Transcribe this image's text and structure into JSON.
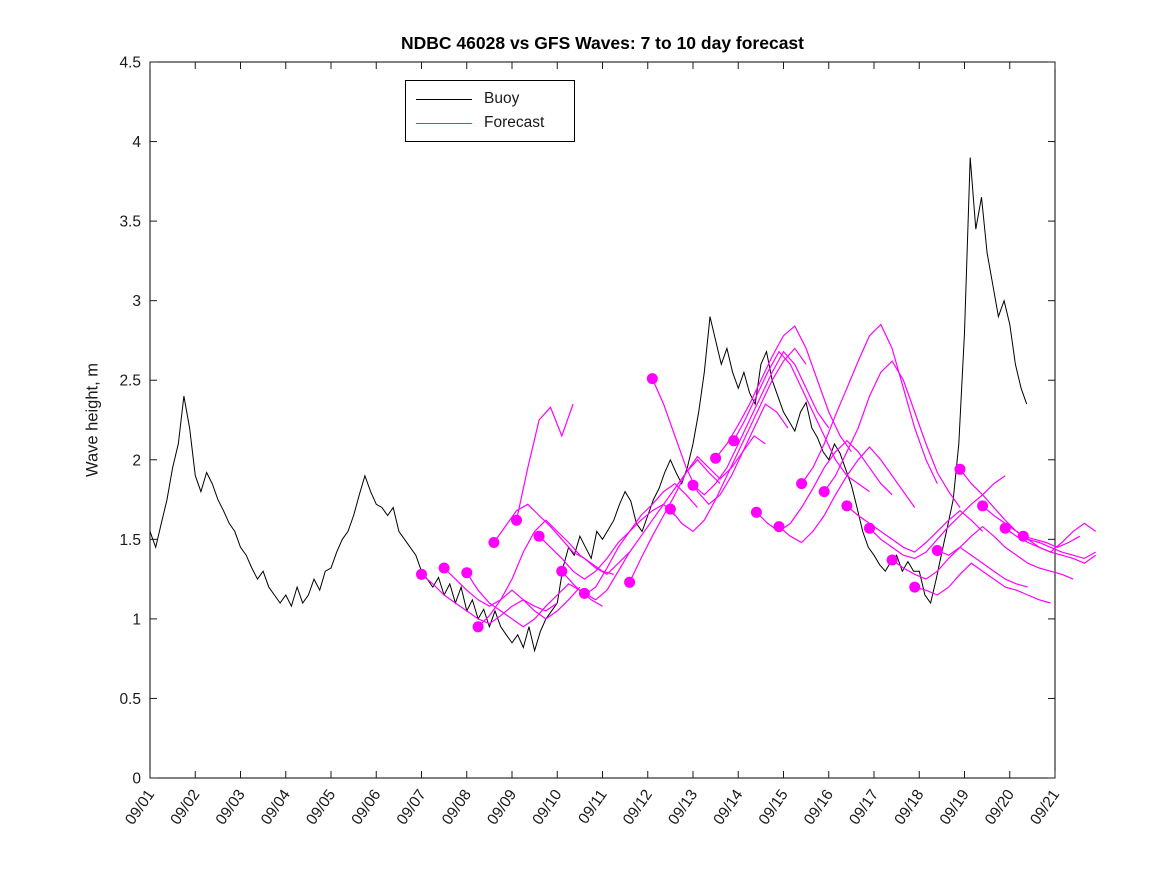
{
  "chart_data": {
    "type": "line",
    "title": "NDBC 46028 vs GFS Waves: 7 to 10 day forecast",
    "xlabel": "",
    "ylabel": "Wave height, m",
    "ylim": [
      0,
      4.5
    ],
    "y_ticks": [
      0,
      0.5,
      1,
      1.5,
      2,
      2.5,
      3,
      3.5,
      4,
      4.5
    ],
    "x_tick_labels": [
      "09/01",
      "09/02",
      "09/03",
      "09/04",
      "09/05",
      "09/06",
      "09/07",
      "09/08",
      "09/09",
      "09/10",
      "09/11",
      "09/12",
      "09/13",
      "09/14",
      "09/15",
      "09/16",
      "09/17",
      "09/18",
      "09/19",
      "09/20",
      "09/21"
    ],
    "xlim_days": [
      0,
      20
    ],
    "grid": false,
    "legend": {
      "position": "top-center",
      "entries": [
        {
          "label": "Buoy",
          "color": "#000000"
        },
        {
          "label": "Forecast",
          "color": "#FF00FF"
        }
      ]
    },
    "series": {
      "buoy": {
        "name": "Buoy",
        "color": "#000000",
        "x_start": 0,
        "x_step": 0.125,
        "values": [
          1.55,
          1.45,
          1.6,
          1.75,
          1.95,
          2.1,
          2.4,
          2.2,
          1.9,
          1.8,
          1.92,
          1.85,
          1.75,
          1.68,
          1.6,
          1.55,
          1.45,
          1.4,
          1.32,
          1.25,
          1.3,
          1.2,
          1.15,
          1.1,
          1.15,
          1.08,
          1.2,
          1.1,
          1.15,
          1.25,
          1.18,
          1.3,
          1.32,
          1.42,
          1.5,
          1.55,
          1.65,
          1.78,
          1.9,
          1.8,
          1.72,
          1.7,
          1.65,
          1.7,
          1.55,
          1.5,
          1.45,
          1.4,
          1.3,
          1.25,
          1.2,
          1.26,
          1.15,
          1.22,
          1.1,
          1.2,
          1.05,
          1.12,
          1.0,
          1.06,
          0.95,
          1.05,
          0.95,
          0.9,
          0.85,
          0.9,
          0.82,
          0.95,
          0.8,
          0.92,
          1.0,
          1.05,
          1.1,
          1.32,
          1.45,
          1.4,
          1.52,
          1.45,
          1.38,
          1.55,
          1.5,
          1.56,
          1.62,
          1.72,
          1.8,
          1.74,
          1.6,
          1.55,
          1.65,
          1.75,
          1.82,
          1.92,
          2.0,
          1.92,
          1.85,
          1.95,
          2.1,
          2.3,
          2.55,
          2.9,
          2.75,
          2.6,
          2.7,
          2.55,
          2.45,
          2.55,
          2.42,
          2.35,
          2.6,
          2.68,
          2.5,
          2.4,
          2.3,
          2.24,
          2.18,
          2.3,
          2.36,
          2.2,
          2.14,
          2.05,
          2.0,
          2.1,
          2.04,
          1.94,
          1.84,
          1.7,
          1.55,
          1.45,
          1.4,
          1.34,
          1.3,
          1.36,
          1.4,
          1.3,
          1.36,
          1.3,
          1.3,
          1.15,
          1.1,
          1.25,
          1.42,
          1.58,
          1.75,
          2.1,
          2.8,
          3.9,
          3.45,
          3.65,
          3.3,
          3.1,
          2.9,
          3.0,
          2.85,
          2.6,
          2.45,
          2.35
        ]
      },
      "forecasts": {
        "name": "Forecast",
        "color": "#FF00FF",
        "x_step": 0.25,
        "marker": "filled-circle-at-start",
        "runs": [
          {
            "start": 6.0,
            "values": [
              1.28,
              1.22,
              1.15,
              1.1,
              1.05,
              1.0,
              0.97,
              1.02,
              1.08,
              1.12,
              1.08,
              1.05,
              1.1
            ]
          },
          {
            "start": 6.5,
            "values": [
              1.32,
              1.25,
              1.18,
              1.12,
              1.08,
              1.12,
              1.18,
              1.12,
              1.05,
              1.0,
              1.05,
              1.12,
              1.2
            ]
          },
          {
            "start": 7.0,
            "values": [
              1.29,
              1.18,
              1.1,
              1.05,
              1.0,
              0.95,
              1.0,
              1.08,
              1.15,
              1.22,
              1.18,
              1.12,
              1.08
            ]
          },
          {
            "start": 7.25,
            "values": [
              0.95,
              1.02,
              1.12,
              1.25,
              1.42,
              1.55,
              1.62,
              1.55,
              1.48,
              1.4,
              1.35,
              1.3,
              1.28
            ]
          },
          {
            "start": 7.6,
            "values": [
              1.48,
              1.58,
              1.68,
              1.72,
              1.65,
              1.58,
              1.5,
              1.42,
              1.38,
              1.32,
              1.28,
              1.35,
              1.42
            ]
          },
          {
            "start": 8.1,
            "values": [
              1.62,
              1.95,
              2.25,
              2.33,
              2.15,
              2.35
            ]
          },
          {
            "start": 8.6,
            "values": [
              1.52,
              1.45,
              1.38,
              1.3,
              1.25,
              1.3,
              1.38,
              1.48,
              1.55,
              1.62,
              1.68,
              1.72,
              1.65
            ]
          },
          {
            "start": 9.1,
            "values": [
              1.3,
              1.22,
              1.15,
              1.2,
              1.32,
              1.45,
              1.55,
              1.65,
              1.72,
              1.8,
              1.85,
              1.78,
              1.7
            ]
          },
          {
            "start": 9.6,
            "values": [
              1.16,
              1.12,
              1.18,
              1.3,
              1.42,
              1.52,
              1.62,
              1.72,
              1.82,
              1.92,
              2.0,
              1.92,
              1.85
            ]
          },
          {
            "start": 10.6,
            "values": [
              1.23,
              1.38,
              1.52,
              1.65,
              1.78,
              1.92,
              2.02,
              1.95,
              1.88,
              1.95,
              2.05,
              2.15,
              2.1
            ]
          },
          {
            "start": 11.1,
            "values": [
              2.51,
              2.35,
              2.15,
              1.95,
              1.8,
              1.72,
              1.78,
              1.9,
              2.05,
              2.2,
              2.35,
              2.3,
              2.2
            ]
          },
          {
            "start": 11.5,
            "values": [
              1.69,
              1.6,
              1.55,
              1.62,
              1.75,
              1.9,
              2.05,
              2.2,
              2.35,
              2.5,
              2.62,
              2.7,
              2.6
            ]
          },
          {
            "start": 12.0,
            "values": [
              1.84,
              1.78,
              1.85,
              1.95,
              2.1,
              2.25,
              2.4,
              2.55,
              2.68,
              2.6,
              2.45,
              2.3,
              2.2
            ]
          },
          {
            "start": 12.5,
            "values": [
              2.01,
              2.1,
              2.22,
              2.35,
              2.5,
              2.65,
              2.78,
              2.84,
              2.7,
              2.5,
              2.3,
              2.15,
              2.05
            ]
          },
          {
            "start": 12.9,
            "values": [
              2.12,
              2.25,
              2.4,
              2.55,
              2.68,
              2.6,
              2.45,
              2.3,
              2.15,
              2.0,
              1.9,
              1.85,
              1.8
            ]
          },
          {
            "start": 13.4,
            "values": [
              1.67,
              1.6,
              1.55,
              1.6,
              1.7,
              1.82,
              1.95,
              2.05,
              2.12,
              2.05,
              1.95,
              1.85,
              1.78
            ]
          },
          {
            "start": 13.9,
            "values": [
              1.58,
              1.52,
              1.48,
              1.55,
              1.65,
              1.78,
              1.9,
              2.0,
              2.08,
              2.0,
              1.9,
              1.8,
              1.7
            ]
          },
          {
            "start": 14.4,
            "values": [
              1.85,
              1.95,
              2.1,
              2.28,
              2.45,
              2.62,
              2.78,
              2.85,
              2.7,
              2.45,
              2.2,
              2.0,
              1.85
            ]
          },
          {
            "start": 14.9,
            "values": [
              1.8,
              1.9,
              2.05,
              2.2,
              2.4,
              2.55,
              2.62,
              2.5,
              2.3,
              2.1,
              1.92,
              1.8,
              1.7
            ]
          },
          {
            "start": 15.4,
            "values": [
              1.71,
              1.65,
              1.6,
              1.55,
              1.5,
              1.45,
              1.42,
              1.48,
              1.55,
              1.62,
              1.68,
              1.62,
              1.55
            ]
          },
          {
            "start": 15.9,
            "values": [
              1.57,
              1.5,
              1.45,
              1.4,
              1.38,
              1.42,
              1.5,
              1.58,
              1.65,
              1.72,
              1.78,
              1.85,
              1.9
            ]
          },
          {
            "start": 16.4,
            "values": [
              1.37,
              1.32,
              1.28,
              1.25,
              1.3,
              1.38,
              1.45,
              1.4,
              1.35,
              1.3,
              1.25,
              1.22,
              1.2
            ]
          },
          {
            "start": 16.9,
            "values": [
              1.2,
              1.18,
              1.15,
              1.2,
              1.28,
              1.35,
              1.3,
              1.25,
              1.2,
              1.18,
              1.15,
              1.12,
              1.1
            ]
          },
          {
            "start": 17.4,
            "values": [
              1.43,
              1.4,
              1.45,
              1.52,
              1.58,
              1.52,
              1.45,
              1.4,
              1.35,
              1.32,
              1.3,
              1.28,
              1.25
            ]
          },
          {
            "start": 17.9,
            "values": [
              1.94,
              1.85,
              1.78,
              1.7,
              1.62,
              1.55,
              1.5,
              1.45,
              1.42,
              1.48,
              1.55,
              1.6,
              1.55
            ]
          },
          {
            "start": 18.4,
            "values": [
              1.71,
              1.65,
              1.6,
              1.55,
              1.5,
              1.48,
              1.45,
              1.42,
              1.4,
              1.38,
              1.42
            ]
          },
          {
            "start": 18.9,
            "values": [
              1.57,
              1.52,
              1.48,
              1.45,
              1.42,
              1.4,
              1.38,
              1.35,
              1.4
            ]
          },
          {
            "start": 19.3,
            "values": [
              1.52,
              1.5,
              1.48,
              1.45,
              1.48,
              1.52
            ]
          }
        ]
      }
    }
  }
}
